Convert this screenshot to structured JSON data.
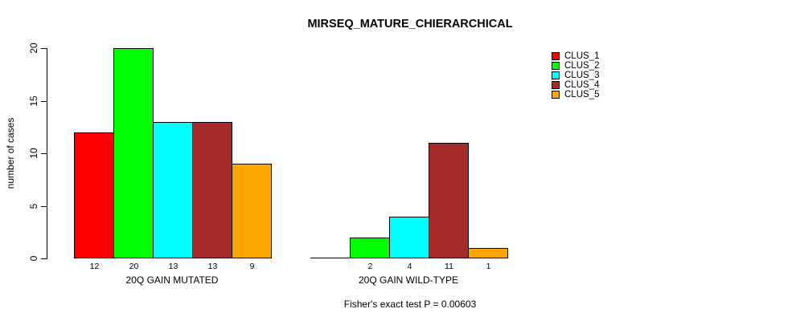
{
  "title": "MIRSEQ_MATURE_CHIERARCHICAL",
  "y_axis": {
    "label": "number of cases",
    "ticks": [
      0,
      5,
      10,
      15,
      20
    ]
  },
  "legend": {
    "items": [
      {
        "label": "CLUS_1",
        "color": "#FF0000"
      },
      {
        "label": "CLUS_2",
        "color": "#00FF00"
      },
      {
        "label": "CLUS_3",
        "color": "#00FFFF"
      },
      {
        "label": "CLUS_4",
        "color": "#A52A2A"
      },
      {
        "label": "CLUS_5",
        "color": "#FFA500"
      }
    ]
  },
  "footer": {
    "text": "Fisher's exact test P = 0.00603"
  },
  "chart_data": {
    "type": "bar",
    "title": "MIRSEQ_MATURE_CHIERARCHICAL",
    "xlabel": "",
    "ylabel": "number of cases",
    "ylim": [
      0,
      20
    ],
    "yticks": [
      0,
      5,
      10,
      15,
      20
    ],
    "grid": false,
    "legend_position": "top-right",
    "clusters": [
      "CLUS_1",
      "CLUS_2",
      "CLUS_3",
      "CLUS_4",
      "CLUS_5"
    ],
    "colors": [
      "#FF0000",
      "#00FF00",
      "#00FFFF",
      "#A52A2A",
      "#FFA500"
    ],
    "groups": [
      {
        "label": "20Q GAIN MUTATED",
        "values": [
          12,
          20,
          13,
          13,
          9
        ],
        "bar_labels": [
          "12",
          "20",
          "13",
          "13",
          "9"
        ]
      },
      {
        "label": "20Q GAIN WILD-TYPE",
        "values": [
          0,
          2,
          4,
          11,
          1
        ],
        "bar_labels": [
          "",
          "2",
          "4",
          "11",
          "1"
        ]
      }
    ],
    "annotation": "Fisher's exact test P = 0.00603"
  }
}
